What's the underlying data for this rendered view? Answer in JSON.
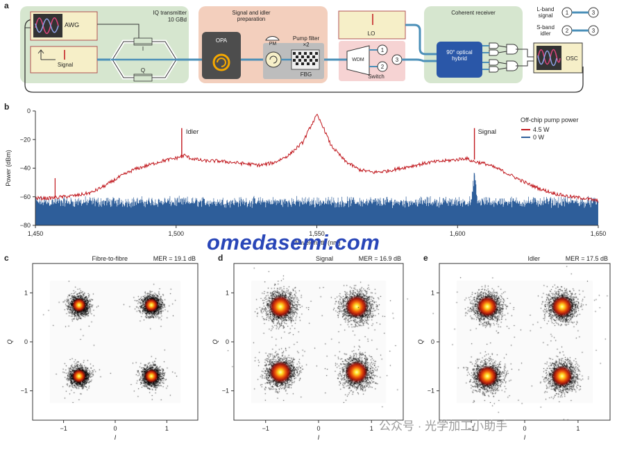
{
  "panels": {
    "a": "a",
    "b": "b",
    "c": "c",
    "d": "d",
    "e": "e"
  },
  "diagram": {
    "iq_title": "IQ transmitter",
    "iq_rate": "10 GBd",
    "awg": "AWG",
    "signal": "Signal",
    "i": "I",
    "q": "Q",
    "prep_title": "Signal and idler preparation",
    "opa": "OPA",
    "pm": "PM",
    "pump_filter": "Pump filter ×2",
    "fbg": "FBG",
    "lo": "LO",
    "wdm": "WDM",
    "switch": "Switch",
    "port1": "1",
    "port2": "2",
    "port3": "3",
    "coherent": "Coherent receiver",
    "hybrid": "90° optical hybrid",
    "osc": "OSC",
    "lband": "L-band signal",
    "sband": "S-band idler"
  },
  "spectrum": {
    "ylabel": "Power (dBm)",
    "xlabel": "Wavelength (nm)",
    "legend_title": "Off-chip pump power",
    "legend": [
      "4.5 W",
      "0 W"
    ],
    "idler": "Idler",
    "signal": "Signal",
    "xticks": [
      "1,450",
      "1,500",
      "1,550",
      "1,600",
      "1,650"
    ],
    "yticks": [
      "0",
      "−20",
      "−40",
      "−60",
      "−80"
    ]
  },
  "constellations": [
    {
      "title": "Fibre-to-fibre",
      "mer": "MER = 19.1 dB"
    },
    {
      "title": "Signal",
      "mer": "MER = 16.9 dB"
    },
    {
      "title": "Idler",
      "mer": "MER = 17.5 dB"
    }
  ],
  "axis": {
    "x": "I",
    "y": "Q",
    "ticks": [
      "−1",
      "0",
      "1"
    ]
  },
  "watermark": "omedasemi.com",
  "watermark2": "公众号 · 光学加工小助手",
  "chart_data": [
    {
      "type": "line",
      "xlabel": "Wavelength (nm)",
      "ylabel": "Power (dBm)",
      "xlim": [
        1450,
        1650
      ],
      "ylim": [
        -80,
        0
      ],
      "legend_position": "top-right",
      "series": [
        {
          "name": "4.5 W",
          "color": "#c0161c",
          "x": [
            1450,
            1455,
            1460,
            1465,
            1470,
            1475,
            1480,
            1485,
            1490,
            1495,
            1500,
            1503,
            1505,
            1510,
            1515,
            1520,
            1525,
            1530,
            1535,
            1540,
            1545,
            1548,
            1550,
            1552,
            1555,
            1560,
            1565,
            1570,
            1575,
            1580,
            1585,
            1590,
            1595,
            1600,
            1603,
            1605,
            1610,
            1615,
            1620,
            1625,
            1630,
            1635,
            1640,
            1645,
            1650
          ],
          "y": [
            -61,
            -61,
            -60,
            -59,
            -57,
            -52,
            -46,
            -41,
            -38,
            -35,
            -33,
            -31,
            -33,
            -35,
            -35,
            -36,
            -37,
            -38,
            -36,
            -31,
            -22,
            -10,
            -3,
            -10,
            -24,
            -35,
            -41,
            -43,
            -42,
            -40,
            -38,
            -36,
            -35,
            -34,
            -33,
            -35,
            -37,
            -41,
            -46,
            -51,
            -55,
            -58,
            -60,
            -61,
            -63
          ]
        },
        {
          "name": "0 W",
          "color": "#2e5e9a",
          "x": [
            1450,
            1500,
            1550,
            1600,
            1605,
            1606,
            1607,
            1650
          ],
          "y": [
            -66,
            -66,
            -66,
            -66,
            -66,
            -45,
            -66,
            -66
          ]
        }
      ],
      "annotations": [
        {
          "text": "Idler",
          "x": 1502,
          "y": -12
        },
        {
          "text": "Signal",
          "x": 1606,
          "y": -12
        }
      ]
    },
    {
      "type": "scatter",
      "title": "Fibre-to-fibre",
      "annotation": "MER = 19.1 dB",
      "xlabel": "I",
      "ylabel": "Q",
      "xlim": [
        -1.6,
        1.6
      ],
      "ylim": [
        -1.6,
        1.6
      ],
      "x": [
        -0.7,
        0.7,
        -0.7,
        0.7
      ],
      "y": [
        0.75,
        0.75,
        -0.7,
        -0.7
      ]
    },
    {
      "type": "scatter",
      "title": "Signal",
      "annotation": "MER = 16.9 dB",
      "xlabel": "I",
      "ylabel": "Q",
      "xlim": [
        -1.6,
        1.6
      ],
      "ylim": [
        -1.6,
        1.6
      ],
      "x": [
        -0.72,
        0.72,
        -0.72,
        0.72
      ],
      "y": [
        0.72,
        0.72,
        -0.62,
        -0.62
      ]
    },
    {
      "type": "scatter",
      "title": "Idler",
      "annotation": "MER = 17.5 dB",
      "xlabel": "I",
      "ylabel": "Q",
      "xlim": [
        -1.6,
        1.6
      ],
      "ylim": [
        -1.6,
        1.6
      ],
      "x": [
        -0.7,
        0.7,
        -0.7,
        0.7
      ],
      "y": [
        0.72,
        0.72,
        -0.7,
        -0.7
      ]
    }
  ]
}
